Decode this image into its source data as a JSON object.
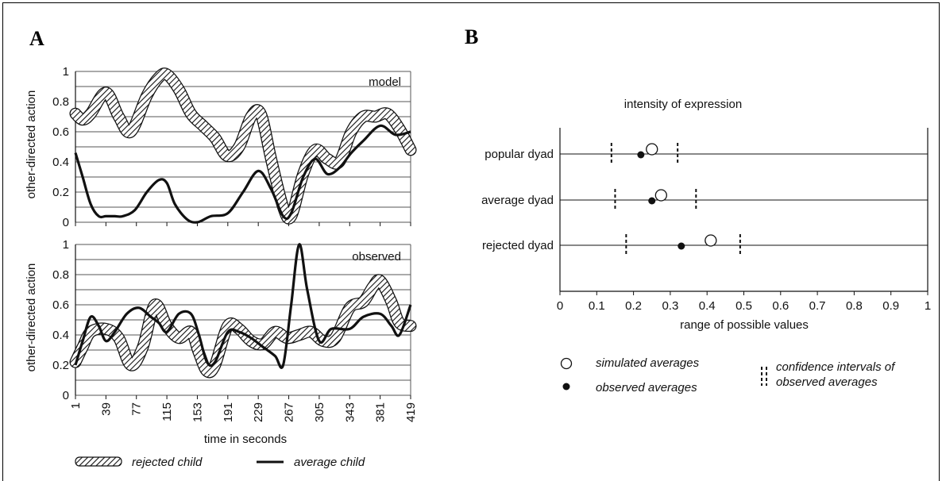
{
  "panels": {
    "a_letter": "A",
    "b_letter": "B"
  },
  "chart_data": [
    {
      "type": "line",
      "panel": "A",
      "title": "model",
      "ylabel": "other-directed action",
      "xlabel": "time in seconds",
      "ylim": [
        0,
        1
      ],
      "yticks": [
        "0",
        "0.2",
        "0.4",
        "0.6",
        "0.8",
        "1"
      ],
      "xticks": [
        "1",
        "39",
        "77",
        "115",
        "153",
        "191",
        "229",
        "267",
        "305",
        "343",
        "381",
        "419"
      ],
      "series": [
        {
          "name": "rejected child",
          "style": "hatched band",
          "x": [
            1,
            10,
            20,
            39,
            55,
            70,
            90,
            105,
            115,
            130,
            145,
            160,
            175,
            190,
            205,
            220,
            232,
            245,
            260,
            270,
            285,
            300,
            315,
            330,
            345,
            360,
            375,
            390,
            405,
            419
          ],
          "y": [
            0.72,
            0.68,
            0.72,
            0.86,
            0.7,
            0.6,
            0.84,
            0.96,
            0.98,
            0.88,
            0.72,
            0.64,
            0.56,
            0.44,
            0.5,
            0.7,
            0.72,
            0.42,
            0.1,
            0.04,
            0.32,
            0.48,
            0.42,
            0.4,
            0.6,
            0.7,
            0.7,
            0.72,
            0.62,
            0.48
          ]
        },
        {
          "name": "average child",
          "style": "solid",
          "x": [
            1,
            10,
            20,
            30,
            39,
            50,
            60,
            75,
            90,
            105,
            115,
            125,
            140,
            153,
            170,
            191,
            210,
            229,
            245,
            260,
            270,
            285,
            300,
            315,
            330,
            345,
            360,
            381,
            400,
            419
          ],
          "y": [
            0.46,
            0.3,
            0.12,
            0.04,
            0.04,
            0.04,
            0.04,
            0.08,
            0.2,
            0.28,
            0.26,
            0.12,
            0.02,
            0.0,
            0.04,
            0.06,
            0.2,
            0.34,
            0.22,
            0.04,
            0.06,
            0.3,
            0.42,
            0.32,
            0.36,
            0.46,
            0.54,
            0.64,
            0.58,
            0.6
          ]
        }
      ]
    },
    {
      "type": "line",
      "panel": "A",
      "title": "observed",
      "ylabel": "other-directed action",
      "xlabel": "time in seconds",
      "ylim": [
        0,
        1
      ],
      "yticks": [
        "0",
        "0.2",
        "0.4",
        "0.6",
        "0.8",
        "1"
      ],
      "xticks": [
        "1",
        "39",
        "77",
        "115",
        "153",
        "191",
        "229",
        "267",
        "305",
        "343",
        "381",
        "419"
      ],
      "series": [
        {
          "name": "rejected child",
          "style": "hatched band",
          "x": [
            1,
            10,
            20,
            39,
            55,
            70,
            85,
            100,
            115,
            130,
            145,
            155,
            165,
            175,
            191,
            205,
            220,
            235,
            250,
            265,
            280,
            295,
            310,
            325,
            343,
            360,
            372,
            381,
            395,
            405,
            419
          ],
          "y": [
            0.22,
            0.32,
            0.42,
            0.44,
            0.38,
            0.2,
            0.32,
            0.6,
            0.46,
            0.38,
            0.42,
            0.28,
            0.16,
            0.2,
            0.46,
            0.44,
            0.36,
            0.34,
            0.42,
            0.38,
            0.4,
            0.42,
            0.36,
            0.38,
            0.58,
            0.62,
            0.72,
            0.76,
            0.62,
            0.48,
            0.46
          ]
        },
        {
          "name": "average child",
          "style": "solid",
          "x": [
            1,
            10,
            20,
            30,
            39,
            50,
            65,
            80,
            95,
            105,
            115,
            130,
            145,
            155,
            165,
            175,
            191,
            205,
            220,
            235,
            250,
            260,
            270,
            280,
            290,
            305,
            320,
            343,
            360,
            381,
            395,
            405,
            419
          ],
          "y": [
            0.2,
            0.36,
            0.52,
            0.46,
            0.36,
            0.42,
            0.54,
            0.58,
            0.52,
            0.48,
            0.42,
            0.54,
            0.54,
            0.4,
            0.22,
            0.22,
            0.42,
            0.42,
            0.38,
            0.32,
            0.26,
            0.2,
            0.6,
            1.0,
            0.7,
            0.36,
            0.44,
            0.44,
            0.52,
            0.54,
            0.46,
            0.4,
            0.6
          ]
        }
      ]
    },
    {
      "type": "scatter",
      "panel": "B",
      "title": "intensity of expression",
      "xlabel": "range of possible values",
      "xlim": [
        0,
        1
      ],
      "xticks": [
        "0",
        "0.1",
        "0.2",
        "0.3",
        "0.4",
        "0.5",
        "0.6",
        "0.7",
        "0.8",
        "0.9",
        "1"
      ],
      "categories": [
        "popular dyad",
        "average dyad",
        "rejected dyad"
      ],
      "series": [
        {
          "name": "simulated averages",
          "marker": "open circle",
          "values": [
            0.25,
            0.275,
            0.41
          ]
        },
        {
          "name": "observed averages",
          "marker": "filled circle",
          "values": [
            0.22,
            0.25,
            0.33
          ]
        }
      ],
      "confidence_intervals": {
        "name": "confidence intervals of observed averages",
        "lower": [
          0.14,
          0.15,
          0.18
        ],
        "upper": [
          0.32,
          0.37,
          0.49
        ]
      }
    }
  ],
  "legend_a": {
    "rejected": "rejected child",
    "average": "average child"
  },
  "legend_b": {
    "simulated": "simulated averages",
    "observed": "observed averages",
    "ci_line1": "confidence intervals of",
    "ci_line2": "observed averages"
  },
  "colors": {
    "ink": "#111111",
    "grid": "#444444"
  }
}
